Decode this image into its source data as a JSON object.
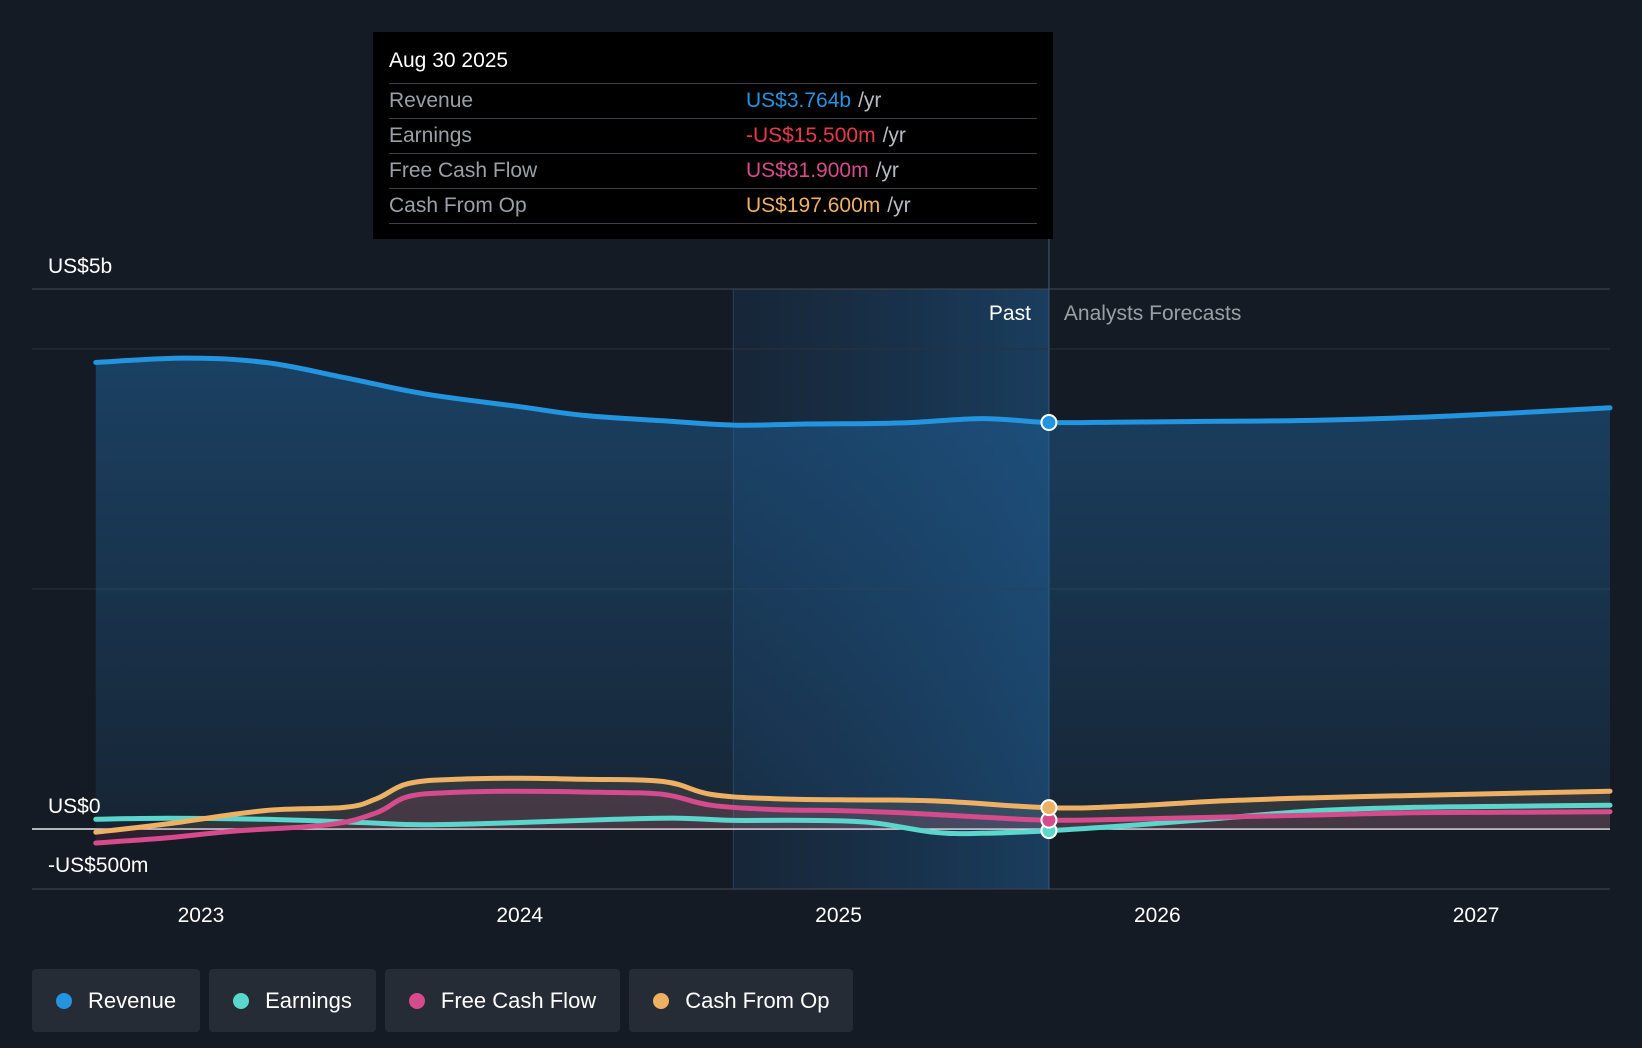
{
  "tooltip": {
    "date": "Aug 30 2025",
    "rows": [
      {
        "label": "Revenue",
        "value": "US$3.764b",
        "unit": "/yr",
        "color": "#2394df"
      },
      {
        "label": "Earnings",
        "value": "-US$15.500m",
        "unit": "/yr",
        "color": "#e8394a"
      },
      {
        "label": "Free Cash Flow",
        "value": "US$81.900m",
        "unit": "/yr",
        "color": "#d54b8c"
      },
      {
        "label": "Cash From Op",
        "value": "US$197.600m",
        "unit": "/yr",
        "color": "#eeb063"
      }
    ]
  },
  "legend": [
    {
      "label": "Revenue",
      "color": "#2394df"
    },
    {
      "label": "Earnings",
      "color": "#5ad6cc"
    },
    {
      "label": "Free Cash Flow",
      "color": "#d54b8c"
    },
    {
      "label": "Cash From Op",
      "color": "#eeb063"
    }
  ],
  "chart_data": {
    "type": "line",
    "title": "",
    "y_tick_labels": {
      "top": "US$5b",
      "zero": "US$0",
      "bottom": "-US$500m"
    },
    "ylim": [
      -500,
      5000
    ],
    "y_unit": "US$ millions",
    "x_ticks": [
      2023,
      2024,
      2025,
      2026,
      2027
    ],
    "xlim": [
      2022.47,
      2027.42
    ],
    "past_label": "Past",
    "forecast_label": "Analysts Forecasts",
    "past_shade_start": 2024.67,
    "divider_x": 2025.66,
    "series": [
      {
        "name": "Revenue",
        "color": "#2394df",
        "points": [
          [
            2022.67,
            4320
          ],
          [
            2022.95,
            4360
          ],
          [
            2023.2,
            4320
          ],
          [
            2023.45,
            4180
          ],
          [
            2023.7,
            4030
          ],
          [
            2024.0,
            3910
          ],
          [
            2024.2,
            3830
          ],
          [
            2024.45,
            3780
          ],
          [
            2024.67,
            3740
          ],
          [
            2024.9,
            3750
          ],
          [
            2025.2,
            3760
          ],
          [
            2025.45,
            3800
          ],
          [
            2025.66,
            3764
          ],
          [
            2025.9,
            3768
          ],
          [
            2026.2,
            3775
          ],
          [
            2026.5,
            3785
          ],
          [
            2026.8,
            3810
          ],
          [
            2027.1,
            3850
          ],
          [
            2027.42,
            3900
          ]
        ]
      },
      {
        "name": "Earnings",
        "color": "#5ad6cc",
        "points": [
          [
            2022.67,
            90
          ],
          [
            2022.9,
            100
          ],
          [
            2023.2,
            90
          ],
          [
            2023.5,
            60
          ],
          [
            2023.7,
            40
          ],
          [
            2024.0,
            60
          ],
          [
            2024.3,
            90
          ],
          [
            2024.5,
            100
          ],
          [
            2024.67,
            80
          ],
          [
            2024.9,
            80
          ],
          [
            2025.1,
            60
          ],
          [
            2025.3,
            -30
          ],
          [
            2025.45,
            -40
          ],
          [
            2025.66,
            -15.5
          ],
          [
            2025.9,
            30
          ],
          [
            2026.2,
            100
          ],
          [
            2026.5,
            170
          ],
          [
            2026.8,
            200
          ],
          [
            2027.1,
            210
          ],
          [
            2027.42,
            220
          ]
        ]
      },
      {
        "name": "Free Cash Flow",
        "color": "#d54b8c",
        "points": [
          [
            2022.67,
            -130
          ],
          [
            2022.9,
            -80
          ],
          [
            2023.1,
            -20
          ],
          [
            2023.4,
            40
          ],
          [
            2023.55,
            150
          ],
          [
            2023.65,
            300
          ],
          [
            2023.8,
            340
          ],
          [
            2024.0,
            350
          ],
          [
            2024.25,
            340
          ],
          [
            2024.45,
            320
          ],
          [
            2024.6,
            220
          ],
          [
            2024.8,
            180
          ],
          [
            2025.0,
            170
          ],
          [
            2025.2,
            150
          ],
          [
            2025.45,
            110
          ],
          [
            2025.66,
            81.9
          ],
          [
            2025.9,
            90
          ],
          [
            2026.2,
            110
          ],
          [
            2026.5,
            130
          ],
          [
            2026.8,
            150
          ],
          [
            2027.1,
            155
          ],
          [
            2027.42,
            160
          ]
        ]
      },
      {
        "name": "Cash From Op",
        "color": "#eeb063",
        "points": [
          [
            2022.67,
            -30
          ],
          [
            2022.9,
            50
          ],
          [
            2023.2,
            170
          ],
          [
            2023.45,
            200
          ],
          [
            2023.55,
            280
          ],
          [
            2023.65,
            420
          ],
          [
            2023.8,
            460
          ],
          [
            2024.0,
            470
          ],
          [
            2024.2,
            460
          ],
          [
            2024.45,
            440
          ],
          [
            2024.6,
            320
          ],
          [
            2024.8,
            280
          ],
          [
            2025.0,
            270
          ],
          [
            2025.3,
            260
          ],
          [
            2025.66,
            197.6
          ],
          [
            2025.9,
            210
          ],
          [
            2026.2,
            260
          ],
          [
            2026.5,
            290
          ],
          [
            2026.8,
            310
          ],
          [
            2027.1,
            330
          ],
          [
            2027.42,
            350
          ]
        ]
      }
    ]
  }
}
